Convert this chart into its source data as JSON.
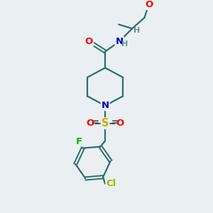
{
  "bg_color": "#eaf0f2",
  "bond_color": "#2d6e6e",
  "atom_colors": {
    "O": "#ff0000",
    "N": "#0000cc",
    "S": "#ccaa00",
    "F": "#00bb00",
    "Cl": "#99bb00",
    "C": "#2d6e6e",
    "H": "#6b8e8e"
  },
  "font_size": 9.5,
  "fig_size": [
    3.0,
    3.0
  ],
  "dpi": 100
}
